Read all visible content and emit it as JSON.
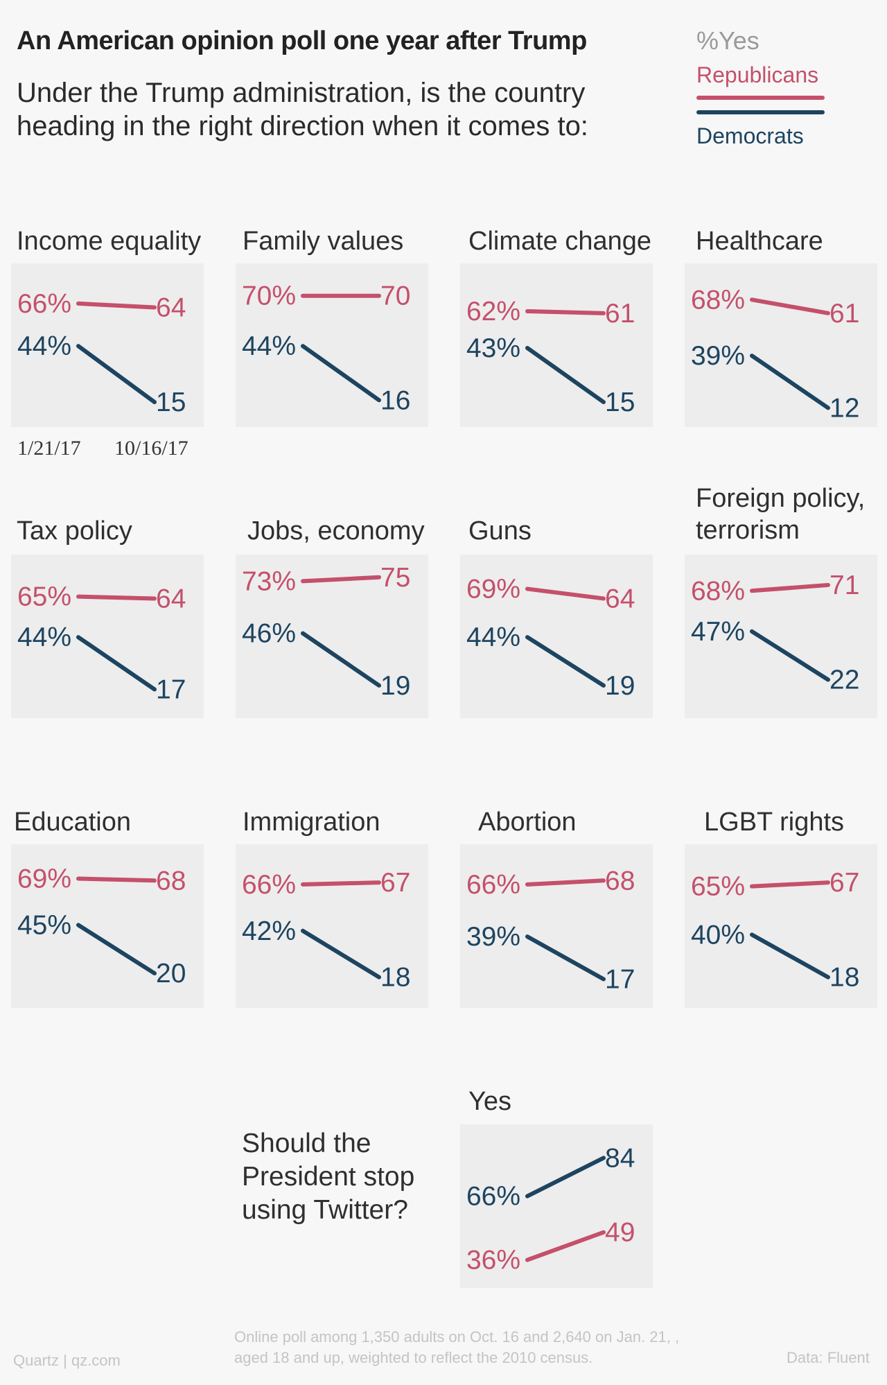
{
  "title": "An American opinion poll one year after Trump",
  "subtitle": "Under the Trump administration, is the country heading in the right direction when it comes to:",
  "legend": {
    "measure": "%Yes",
    "republicans": "Republicans",
    "democrats": "Democrats"
  },
  "colors": {
    "republicans": "#c4506b",
    "democrats": "#1d4460",
    "panel_bg": "#ededed"
  },
  "x_dates": [
    "1/21/17",
    "10/16/17"
  ],
  "twitter": {
    "question": "Should the President stop using Twitter?",
    "label": "Yes"
  },
  "footer": {
    "source": "Quartz | qz.com",
    "note": "Online poll among 1,350 adults on Oct. 16 and 2,640 on Jan. 21, , aged 18 and up, weighted to reflect the 2010 census.",
    "data": "Data: Fluent"
  },
  "chart_data": {
    "type": "line",
    "x": [
      "1/21/17",
      "10/16/17"
    ],
    "y_unit": "%Yes",
    "panels": [
      {
        "title": "Income equality",
        "series": [
          {
            "name": "Republicans",
            "values": [
              66,
              64
            ],
            "labels": [
              "66%",
              "64"
            ]
          },
          {
            "name": "Democrats",
            "values": [
              44,
              15
            ],
            "labels": [
              "44%",
              "15"
            ]
          }
        ]
      },
      {
        "title": "Family values",
        "series": [
          {
            "name": "Republicans",
            "values": [
              70,
              70
            ],
            "labels": [
              "70%",
              "70"
            ]
          },
          {
            "name": "Democrats",
            "values": [
              44,
              16
            ],
            "labels": [
              "44%",
              "16"
            ]
          }
        ]
      },
      {
        "title": "Climate change",
        "series": [
          {
            "name": "Republicans",
            "values": [
              62,
              61
            ],
            "labels": [
              "62%",
              "61"
            ]
          },
          {
            "name": "Democrats",
            "values": [
              43,
              15
            ],
            "labels": [
              "43%",
              "15"
            ]
          }
        ]
      },
      {
        "title": "Healthcare",
        "series": [
          {
            "name": "Republicans",
            "values": [
              68,
              61
            ],
            "labels": [
              "68%",
              "61"
            ]
          },
          {
            "name": "Democrats",
            "values": [
              39,
              12
            ],
            "labels": [
              "39%",
              "12"
            ]
          }
        ]
      },
      {
        "title": "Tax policy",
        "series": [
          {
            "name": "Republicans",
            "values": [
              65,
              64
            ],
            "labels": [
              "65%",
              "64"
            ]
          },
          {
            "name": "Democrats",
            "values": [
              44,
              17
            ],
            "labels": [
              "44%",
              "17"
            ]
          }
        ]
      },
      {
        "title": "Jobs, economy",
        "series": [
          {
            "name": "Republicans",
            "values": [
              73,
              75
            ],
            "labels": [
              "73%",
              "75"
            ]
          },
          {
            "name": "Democrats",
            "values": [
              46,
              19
            ],
            "labels": [
              "46%",
              "19"
            ]
          }
        ]
      },
      {
        "title": "Guns",
        "series": [
          {
            "name": "Republicans",
            "values": [
              69,
              64
            ],
            "labels": [
              "69%",
              "64"
            ]
          },
          {
            "name": "Democrats",
            "values": [
              44,
              19
            ],
            "labels": [
              "44%",
              "19"
            ]
          }
        ]
      },
      {
        "title": "Foreign policy, terrorism",
        "series": [
          {
            "name": "Republicans",
            "values": [
              68,
              71
            ],
            "labels": [
              "68%",
              "71"
            ]
          },
          {
            "name": "Democrats",
            "values": [
              47,
              22
            ],
            "labels": [
              "47%",
              "22"
            ]
          }
        ]
      },
      {
        "title": "Education",
        "series": [
          {
            "name": "Republicans",
            "values": [
              69,
              68
            ],
            "labels": [
              "69%",
              "68"
            ]
          },
          {
            "name": "Democrats",
            "values": [
              45,
              20
            ],
            "labels": [
              "45%",
              "20"
            ]
          }
        ]
      },
      {
        "title": "Immigration",
        "series": [
          {
            "name": "Republicans",
            "values": [
              66,
              67
            ],
            "labels": [
              "66%",
              "67"
            ]
          },
          {
            "name": "Democrats",
            "values": [
              42,
              18
            ],
            "labels": [
              "42%",
              "18"
            ]
          }
        ]
      },
      {
        "title": "Abortion",
        "series": [
          {
            "name": "Republicans",
            "values": [
              66,
              68
            ],
            "labels": [
              "66%",
              "68"
            ]
          },
          {
            "name": "Democrats",
            "values": [
              39,
              17
            ],
            "labels": [
              "39%",
              "17"
            ]
          }
        ]
      },
      {
        "title": "LGBT rights",
        "series": [
          {
            "name": "Republicans",
            "values": [
              65,
              67
            ],
            "labels": [
              "65%",
              "67"
            ]
          },
          {
            "name": "Democrats",
            "values": [
              40,
              18
            ],
            "labels": [
              "40%",
              "18"
            ]
          }
        ]
      },
      {
        "title": "Yes",
        "series": [
          {
            "name": "Democrats",
            "values": [
              66,
              84
            ],
            "labels": [
              "66%",
              "84"
            ]
          },
          {
            "name": "Republicans",
            "values": [
              36,
              49
            ],
            "labels": [
              "36%",
              "49"
            ]
          }
        ]
      }
    ]
  }
}
